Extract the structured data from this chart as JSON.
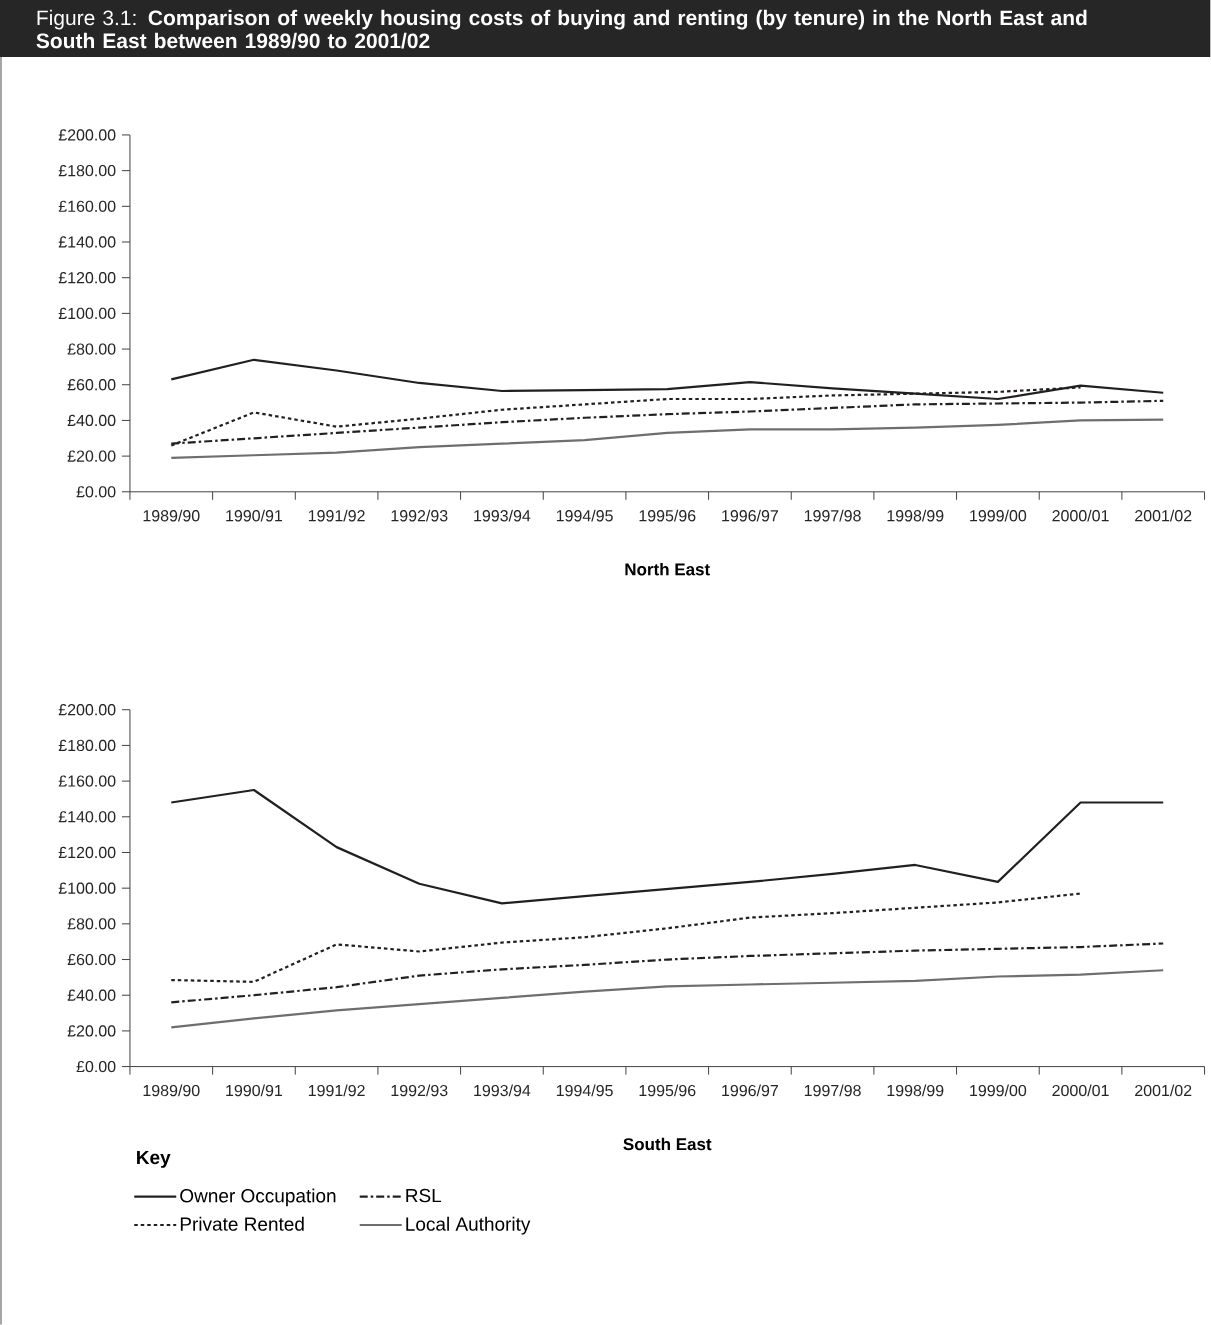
{
  "chart_data": [
    {
      "type": "line",
      "title": "Figure 3.1: **Comparison of weekly housing costs of buying and renting (by tenure) in the North East and South East between 1989/90 to 2001/02**",
      "xlabel": "North East",
      "categories": [
        "1989/90",
        "1990/91",
        "1991/92",
        "1992/93",
        "1993/94",
        "1994/95",
        "1995/96",
        "1996/97",
        "1997/98",
        "1998/99",
        "1999/00",
        "2000/01",
        "2001/02"
      ],
      "ylim": [
        0,
        200
      ],
      "yticks": [
        {
          "value": 0,
          "label": "£0.00"
        },
        {
          "value": 20,
          "label": "£20.00"
        },
        {
          "value": 40,
          "label": "£40.00"
        },
        {
          "value": 60,
          "label": "£60.00"
        },
        {
          "value": 80,
          "label": "£80.00"
        },
        {
          "value": 100,
          "label": "£100.00"
        },
        {
          "value": 120,
          "label": "£120.00"
        },
        {
          "value": 140,
          "label": "£140.00"
        },
        {
          "value": 160,
          "label": "£160.00"
        },
        {
          "value": 180,
          "label": "£180.00"
        },
        {
          "value": 200,
          "label": "£200.00"
        }
      ],
      "series": [
        {
          "color": "#231f20",
          "line_style": "solid",
          "values": [
            63,
            74,
            68,
            61,
            56.5,
            57,
            57.5,
            61.5,
            58,
            55,
            52,
            59.5,
            55.5
          ]
        },
        {
          "color": "#231f20",
          "line_style": "dotted",
          "values": [
            26,
            44.5,
            36.5,
            41,
            46,
            49,
            52,
            52,
            54,
            55,
            56,
            58.5,
            null
          ]
        },
        {
          "color": "#231f20",
          "line_style": "dashdot",
          "values": [
            27,
            30,
            33,
            36,
            39,
            41.5,
            43.5,
            45,
            47,
            49,
            49.5,
            50,
            51
          ]
        },
        {
          "color": "#6d6e70",
          "line_style": "solid",
          "values": [
            19,
            20.5,
            22,
            25,
            27,
            29,
            33,
            35,
            35,
            36,
            37.5,
            40,
            40.5
          ]
        }
      ]
    },
    {
      "type": "line",
      "xlabel": "South East",
      "legend_title": "Key",
      "legend": "bottom",
      "categories": [
        "1989/90",
        "1990/91",
        "1991/92",
        "1992/93",
        "1993/94",
        "1994/95",
        "1995/96",
        "1996/97",
        "1997/98",
        "1998/99",
        "1999/00",
        "2000/01",
        "2001/02"
      ],
      "ylim": [
        0,
        200
      ],
      "yticks": [
        {
          "value": 0,
          "label": "£0.00"
        },
        {
          "value": 20,
          "label": "£20.00"
        },
        {
          "value": 40,
          "label": "£40.00"
        },
        {
          "value": 60,
          "label": "£60.00"
        },
        {
          "value": 80,
          "label": "£80.00"
        },
        {
          "value": 100,
          "label": "£100.00"
        },
        {
          "value": 120,
          "label": "£120.00"
        },
        {
          "value": 140,
          "label": "£140.00"
        },
        {
          "value": 160,
          "label": "£160.00"
        },
        {
          "value": 180,
          "label": "£180.00"
        },
        {
          "value": 200,
          "label": "£200.00"
        }
      ],
      "series": [
        {
          "name": "Owner Occupation",
          "color": "#231f20",
          "line_style": "solid",
          "values": [
            148,
            155,
            123,
            102.5,
            91.5,
            95.5,
            99.5,
            103.5,
            108,
            113,
            103.5,
            148,
            148
          ]
        },
        {
          "name": "Private Rented",
          "color": "#231f20",
          "line_style": "dotted",
          "values": [
            48.5,
            47.5,
            68.5,
            64.5,
            69.5,
            72.5,
            77.5,
            83.5,
            86,
            89,
            92,
            97,
            null
          ]
        },
        {
          "name": "RSL",
          "color": "#231f20",
          "line_style": "dashdot",
          "values": [
            36,
            40,
            44.5,
            51,
            54.5,
            57,
            60,
            62,
            63.5,
            65,
            66,
            67,
            69
          ]
        },
        {
          "name": "Local Authority",
          "color": "#6d6e70",
          "line_style": "solid",
          "values": [
            22,
            27,
            31.5,
            35,
            38.5,
            42,
            45,
            46,
            47,
            48,
            50.5,
            51.5,
            54
          ]
        }
      ]
    }
  ]
}
